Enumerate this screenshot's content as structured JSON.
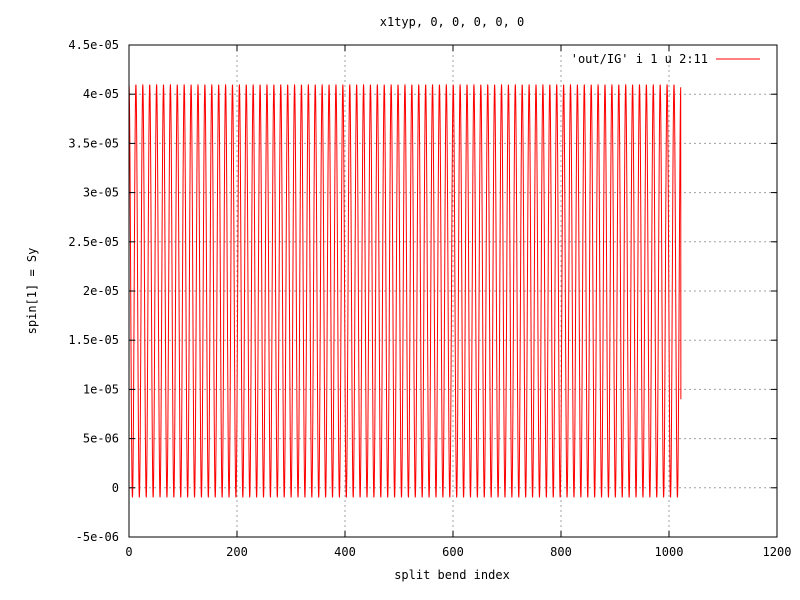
{
  "chart_data": {
    "type": "line",
    "title": "x1typ, 0, 0, 0, 0, 0",
    "xlabel": "split bend index",
    "ylabel": "spin[1] = Sy",
    "xlim": [
      0,
      1200
    ],
    "ylim": [
      -5e-06,
      4.5e-05
    ],
    "xticks": [
      {
        "value": 0,
        "label": "0"
      },
      {
        "value": 200,
        "label": "200"
      },
      {
        "value": 400,
        "label": "400"
      },
      {
        "value": 600,
        "label": "600"
      },
      {
        "value": 800,
        "label": "800"
      },
      {
        "value": 1000,
        "label": "1000"
      },
      {
        "value": 1200,
        "label": "1200"
      }
    ],
    "yticks": [
      {
        "value": -5e-06,
        "label": "-5e-06"
      },
      {
        "value": 0,
        "label": "0"
      },
      {
        "value": 5e-06,
        "label": "5e-06"
      },
      {
        "value": 1e-05,
        "label": "1e-05"
      },
      {
        "value": 1.5e-05,
        "label": "1.5e-05"
      },
      {
        "value": 2e-05,
        "label": "2e-05"
      },
      {
        "value": 2.5e-05,
        "label": "2.5e-05"
      },
      {
        "value": 3e-05,
        "label": "3e-05"
      },
      {
        "value": 3.5e-05,
        "label": "3.5e-05"
      },
      {
        "value": 4e-05,
        "label": "4e-05"
      },
      {
        "value": 4.5e-05,
        "label": "4.5e-05"
      }
    ],
    "grid": true,
    "legend_position": "top-right",
    "series": [
      {
        "name": "'out/IG' i 1 u 2:11",
        "color": "#ff0000",
        "x_start": 0,
        "x_end": 1022,
        "max": 4.1e-05,
        "min": -1e-06,
        "cycles": 80,
        "end_value": 9e-06
      }
    ]
  }
}
